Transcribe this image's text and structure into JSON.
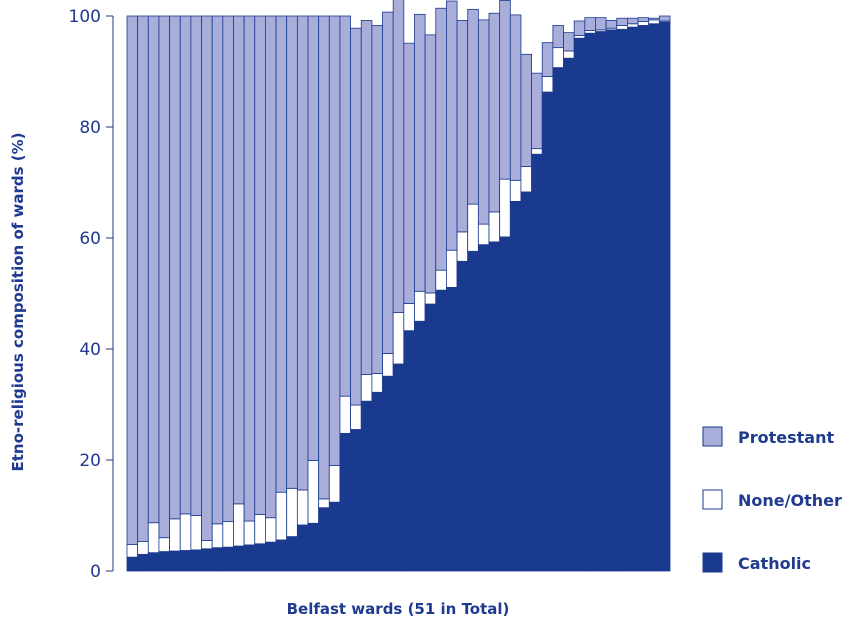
{
  "chart_data": {
    "type": "bar",
    "stacked": true,
    "xlabel": "Belfast wards (51 in Total)",
    "ylabel": "Etno-religious composition of wards (%)",
    "ylim": [
      0,
      100
    ],
    "yticks": [
      0,
      20,
      40,
      60,
      80,
      100
    ],
    "grid": false,
    "legend_position": "right",
    "series": [
      {
        "name": "Catholic",
        "color": "#1a3a8f",
        "values": [
          2.5,
          3,
          3.3,
          3.5,
          3.6,
          3.7,
          3.8,
          4,
          4.2,
          4.3,
          4.5,
          4.7,
          4.9,
          5.2,
          5.6,
          6.2,
          8.3,
          8.6,
          11.4,
          12.4,
          24.8,
          25.5,
          30.6,
          32.2,
          35.1,
          37.3,
          43.3,
          45,
          48.1,
          50.6,
          51.1,
          55.8,
          57.6,
          58.8,
          59.3,
          60.2,
          66.6,
          68.3,
          75.1,
          86.3,
          90.7,
          92.4,
          96,
          96.9,
          97.2,
          97.5,
          97.6,
          98,
          98.3,
          98.6,
          98.9
        ]
      },
      {
        "name": "None/Other",
        "color": "#ffffff",
        "values": [
          2.3,
          2.3,
          5.4,
          2.5,
          5.8,
          6.6,
          6.2,
          1.5,
          4.3,
          4.6,
          7.6,
          4.3,
          5.3,
          4.4,
          8.6,
          8.7,
          6.3,
          11.3,
          1.6,
          6.6,
          6.7,
          4.4,
          4.8,
          3.4,
          4.1,
          9.3,
          4.9,
          5.4,
          2,
          3.6,
          6.7,
          5.3,
          8.5,
          3.7,
          5.4,
          10.4,
          3.8,
          4.6,
          1,
          2.8,
          3.6,
          1.3,
          0.5,
          0.5,
          0.3,
          0.3,
          0.7,
          0.6,
          0.7,
          0.7,
          0.2
        ]
      },
      {
        "name": "Protestant",
        "color": "#a9adda",
        "values": [
          95.2,
          94.7,
          91.3,
          94,
          90.6,
          89.7,
          90,
          94.5,
          91.5,
          91.1,
          87.9,
          91,
          89.8,
          90.4,
          85.8,
          85.1,
          85.4,
          80.1,
          87,
          81,
          68.5,
          67.9,
          63.8,
          62.7,
          61.5,
          58.4,
          46.9,
          49.9,
          46.5,
          47.2,
          44.9,
          38.1,
          35.1,
          36.8,
          35.8,
          32.2,
          29.8,
          20.2,
          13.6,
          6.1,
          4,
          3.3,
          2.6,
          2.3,
          2.2,
          1.4,
          1.3,
          1,
          0.7,
          0.3,
          0.9
        ]
      }
    ],
    "legend": [
      {
        "label": "Protestant",
        "color": "#a9adda"
      },
      {
        "label": "None/Other",
        "color": "#ffffff"
      },
      {
        "label": "Catholic",
        "color": "#1a3a8f"
      }
    ]
  }
}
